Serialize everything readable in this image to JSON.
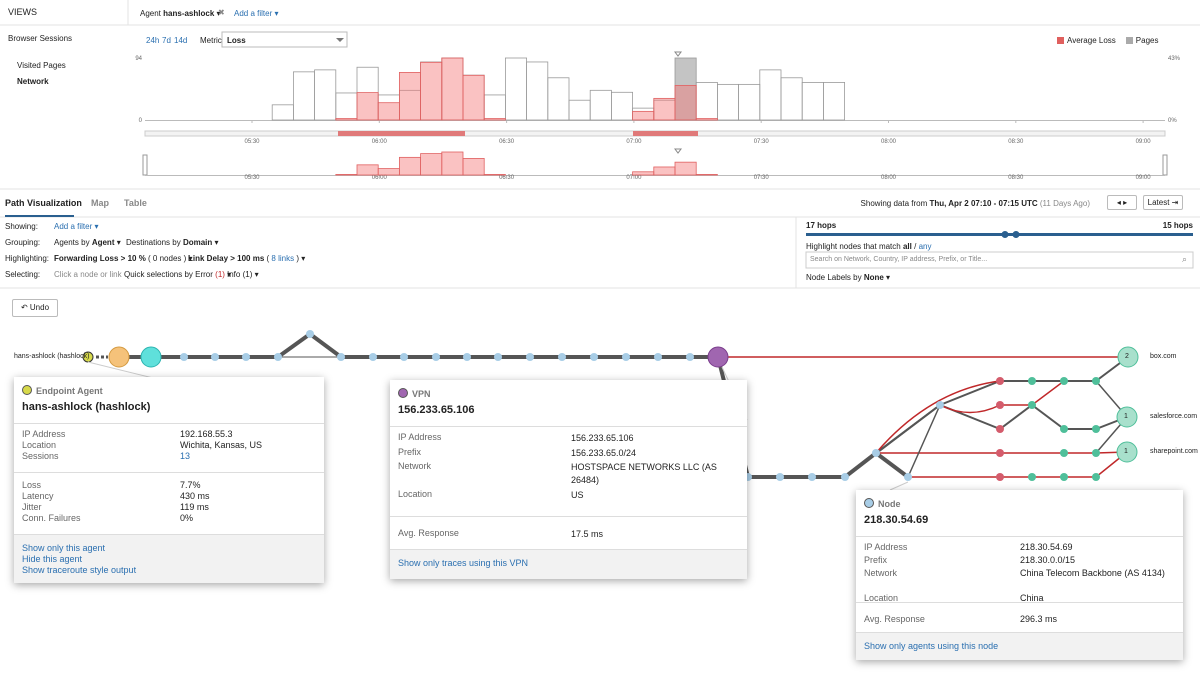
{
  "top_bar": {
    "views": "VIEWS",
    "agent_label": "Agent",
    "agent_name": "hans-ashlock",
    "add_filter": "Add a filter"
  },
  "sidebar": {
    "items": [
      "Browser Sessions",
      "Visited Pages",
      "Network"
    ]
  },
  "timeline": {
    "ranges": [
      "24h",
      "7d",
      "14d"
    ],
    "metric_label": "Metric",
    "metric": "Loss",
    "legend": [
      {
        "name": "Average Loss",
        "color": "#e0605e"
      },
      {
        "name": "Pages",
        "color": "#aaaaaa"
      }
    ],
    "ylim": [
      0,
      94
    ],
    "yticks": [
      0,
      94
    ],
    "y2lim": [
      0,
      43
    ],
    "y2ticks": [
      {
        "value": 0,
        "label": "0%"
      },
      {
        "value": 43,
        "label": "43%"
      }
    ],
    "xticks": [
      "05:30",
      "06:00",
      "06:30",
      "07:00",
      "07:30",
      "08:00",
      "08:30",
      "09:00"
    ],
    "pages": [
      0,
      0,
      0,
      0,
      0,
      0,
      23,
      73,
      76,
      41,
      80,
      38,
      45,
      88,
      94,
      68,
      38,
      94,
      88,
      64,
      30,
      45,
      42,
      18,
      30,
      94,
      57,
      54,
      54,
      76,
      64,
      57,
      57,
      0,
      0,
      0,
      0,
      0,
      0,
      0,
      0,
      0,
      0,
      0,
      0,
      0,
      0,
      0
    ],
    "loss": [
      0,
      0,
      0,
      0,
      0,
      0,
      0,
      0,
      0,
      1,
      19,
      12,
      33,
      40,
      43,
      31,
      1,
      0,
      0,
      0,
      0,
      0,
      0,
      6,
      15,
      24,
      1,
      0,
      0,
      0,
      0,
      0,
      0,
      0,
      0,
      0,
      0,
      0,
      0,
      0,
      0,
      0,
      0,
      0,
      0,
      0,
      0,
      0
    ]
  },
  "path_panel": {
    "tabs": [
      "Path Visualization",
      "Map",
      "Table"
    ],
    "showing_prefix": "Showing data from",
    "showing_range": "Thu, Apr 2 07:10 - 07:15 UTC",
    "showing_ago": "(11 Days Ago)",
    "latest": "Latest",
    "filters": {
      "showing_label": "Showing:",
      "add_filter": "Add a filter",
      "grouping_label": "Grouping:",
      "agents_by": "Agents by",
      "agents_by_value": "Agent",
      "destinations_by": "Destinations by",
      "destinations_by_value": "Domain",
      "highlighting_label": "Highlighting:",
      "forwarding_loss": "Forwarding Loss > 10 %",
      "forwarding_count": "( 0 nodes )",
      "link_delay": "Link Delay > 100 ms",
      "link_delay_count_open": "(",
      "link_delay_count": "8 links",
      "link_delay_count_close": ")",
      "selecting_label": "Selecting:",
      "click_hint": "Click a node or link",
      "quick_selections": "Quick selections by Error",
      "quick_count": "(1)",
      "info": "Info",
      "info_count": "(1)"
    },
    "hops_left": "17 hops",
    "hops_right": "15 hops",
    "highlight_match": "Highlight nodes that match",
    "match_all": "all",
    "match_sep": "/",
    "match_any": "any",
    "search_placeholder": "Search on Network, Country, IP address, Prefix, or Title...",
    "node_labels": "Node Labels by",
    "node_labels_value": "None",
    "undo": "Undo"
  },
  "graph": {
    "agent_label": "hans-ashlock (hashlock)",
    "destinations": [
      {
        "name": "box.com",
        "count": "2"
      },
      {
        "name": "salesforce.com",
        "count": "1"
      },
      {
        "name": "sharepoint.com",
        "count": "1"
      }
    ]
  },
  "popups": {
    "agent": {
      "kind": "Endpoint Agent",
      "title": "hans-ashlock (hashlock)",
      "rows": [
        [
          "IP Address",
          "192.168.55.3"
        ],
        [
          "Location",
          "Wichita, Kansas, US"
        ],
        [
          "Sessions",
          "13"
        ]
      ],
      "metrics": [
        [
          "Loss",
          "7.7%"
        ],
        [
          "Latency",
          "430 ms"
        ],
        [
          "Jitter",
          "119 ms"
        ],
        [
          "Conn. Failures",
          "0%"
        ]
      ],
      "links": [
        "Show only this agent",
        "Hide this agent",
        "Show traceroute style output"
      ]
    },
    "vpn": {
      "kind": "VPN",
      "title": "156.233.65.106",
      "rows": [
        [
          "IP Address",
          "156.233.65.106"
        ],
        [
          "Prefix",
          "156.233.65.0/24"
        ],
        [
          "Network",
          "HOSTSPACE NETWORKS LLC (AS 26484)"
        ],
        [
          "Location",
          "US"
        ]
      ],
      "metrics": [
        [
          "Avg. Response",
          "17.5 ms"
        ]
      ],
      "links": [
        "Show only traces using this VPN"
      ]
    },
    "node": {
      "kind": "Node",
      "title": "218.30.54.69",
      "rows": [
        [
          "IP Address",
          "218.30.54.69"
        ],
        [
          "Prefix",
          "218.30.0.0/15"
        ],
        [
          "Network",
          "China Telecom Backbone (AS 4134)"
        ],
        [
          "Location",
          "China"
        ]
      ],
      "metrics": [
        [
          "Avg. Response",
          "296.3 ms"
        ]
      ],
      "links": [
        "Show only agents using this node"
      ]
    }
  }
}
